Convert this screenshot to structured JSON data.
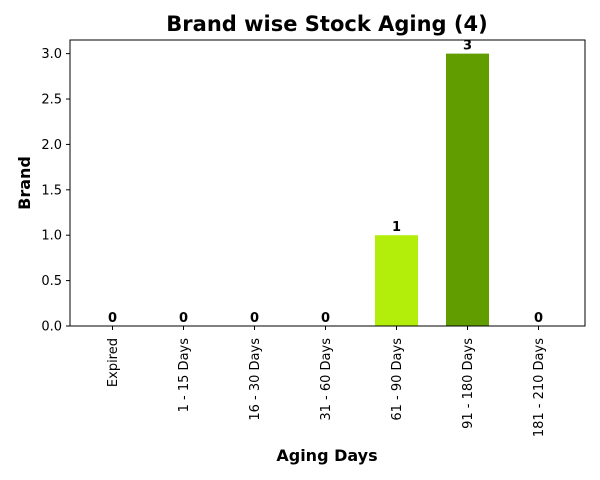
{
  "chart_data": {
    "type": "bar",
    "title": "Brand wise Stock Aging (4)",
    "xlabel": "Aging Days",
    "ylabel": "Brand",
    "categories": [
      "Expired",
      "1 - 15 Days",
      "16 - 30 Days",
      "31 - 60 Days",
      "61 - 90 Days",
      "91 - 180 Days",
      "181 - 210 Days"
    ],
    "values": [
      0,
      0,
      0,
      0,
      1,
      3,
      0
    ],
    "data_labels": [
      "0",
      "0",
      "0",
      "0",
      "1",
      "3",
      "0"
    ],
    "bar_colors": [
      "#b2ee0a",
      "#b2ee0a",
      "#b2ee0a",
      "#b2ee0a",
      "#b2ee0a",
      "#629d00",
      "#b2ee0a"
    ],
    "ylim": [
      0,
      3.15
    ],
    "yticks": [
      "0.0",
      "0.5",
      "1.0",
      "1.5",
      "2.0",
      "2.5",
      "3.0"
    ],
    "grid": false,
    "legend": "none"
  }
}
